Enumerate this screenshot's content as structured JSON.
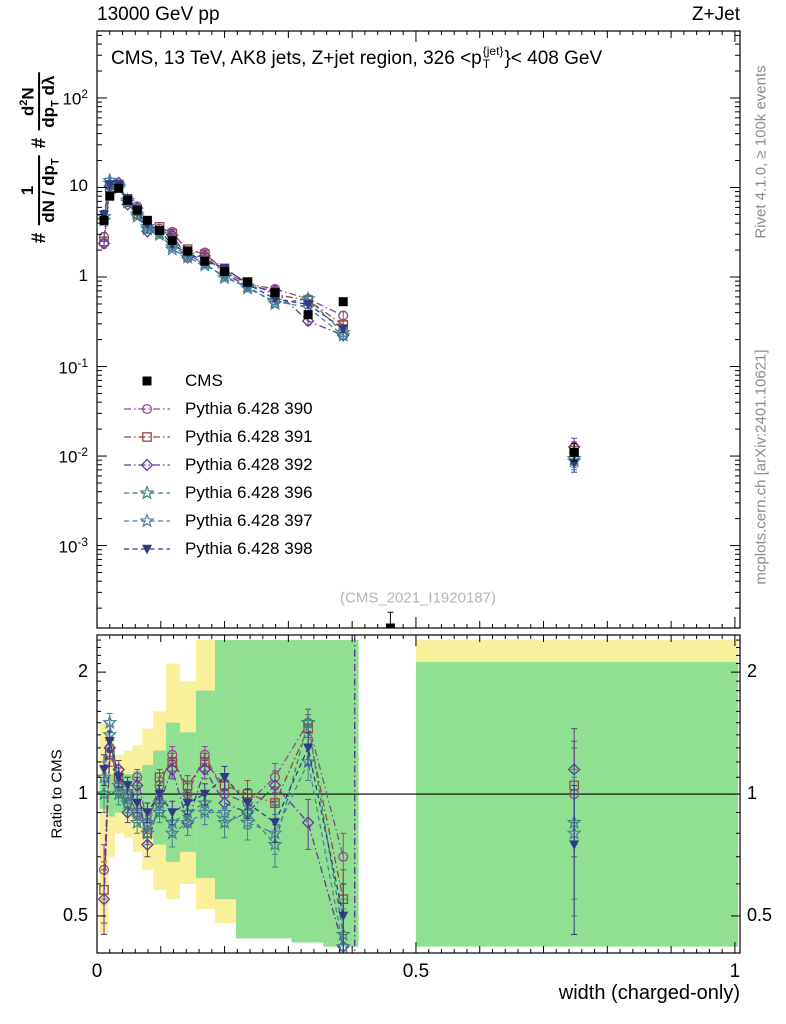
{
  "header": {
    "left": "13000 GeV pp",
    "right": "Z+Jet"
  },
  "title": {
    "pre": "CMS, 13 TeV, AK8 jets, Z+jet region, 326 <p",
    "sup": "{jet}",
    "sub": "T",
    "post": "}< 408 GeV"
  },
  "ylabel": {
    "hash1": "#",
    "f1num": "1",
    "f1den_pre": "dN / dp",
    "f1den_sub": "T",
    "hash2": "#",
    "f2num_pre": "d",
    "f2num_sup": "2",
    "f2num_post": "N",
    "f2den_pre": "dp",
    "f2den_sub": "T",
    "f2den_post": " dλ"
  },
  "ratio_ylabel": "Ratio to CMS",
  "xlabel": "width (charged-only)",
  "watermark": "(CMS_2021_I1920187)",
  "side_notes": {
    "top": "Rivet 4.1.0, ≥ 100k events",
    "bottom": "mcplots.cern.ch [arXiv:2401.10621]"
  },
  "axes": {
    "x_ticks": [
      {
        "v": 0,
        "label": "0"
      },
      {
        "v": 0.5,
        "label": "0.5"
      },
      {
        "v": 1,
        "label": "1"
      }
    ],
    "main_y_ticks": [
      {
        "v": 100,
        "label": "10^{2}"
      },
      {
        "v": 10,
        "label": "10"
      },
      {
        "v": 1,
        "label": "1"
      },
      {
        "v": 0.1,
        "label": "10^{-1}"
      },
      {
        "v": 0.01,
        "label": "10^{-2}"
      },
      {
        "v": 0.001,
        "label": "10^{-3}"
      }
    ],
    "ratio_y_ticks": [
      {
        "v": 2,
        "label": "2"
      },
      {
        "v": 1,
        "label": "1"
      },
      {
        "v": 0.5,
        "label": "0.5"
      }
    ]
  },
  "colors": {
    "band_yellow": "#f8f09b",
    "band_green": "#90e092",
    "watermark": "#b5b5b5",
    "side_note": "#8c8c8c"
  },
  "chart_data": {
    "type": "line",
    "title": "CMS, 13 TeV, AK8 jets, Z+jet region, 326 < pT{jet} < 408 GeV",
    "xlabel": "width (charged-only)",
    "ylabel": "# 1/(dN/dpT) # d2N/(dpT dλ)",
    "ratio_label": "Ratio to CMS",
    "xlim": [
      0,
      1.008
    ],
    "main_ylog": true,
    "main_ylim": [
      0.00012,
      560
    ],
    "ratio_ylog": true,
    "ratio_ylim": [
      0.405,
      2.47
    ],
    "legend_position": "middle-left",
    "grid": false,
    "x": [
      0.011,
      0.02,
      0.034,
      0.048,
      0.063,
      0.079,
      0.098,
      0.118,
      0.142,
      0.169,
      0.2,
      0.236,
      0.279,
      0.331,
      0.386,
      0.46,
      0.748
    ],
    "cms": {
      "name": "CMS",
      "marker": "square-filled",
      "color": "#000000",
      "values": [
        4.3,
        8.0,
        9.8,
        7.2,
        5.6,
        4.3,
        3.3,
        2.55,
        1.95,
        1.5,
        1.15,
        0.88,
        0.67,
        0.38,
        0.53,
        0.00012,
        0.011
      ],
      "rel_err": [
        0.12,
        0.06,
        0.05,
        0.04,
        0.04,
        0.04,
        0.05,
        0.05,
        0.05,
        0.06,
        0.06,
        0.07,
        0.08,
        0.1,
        0.1,
        0.5,
        0.25
      ]
    },
    "series": [
      {
        "name": "Pythia 6.428 390",
        "marker": "circle-open",
        "color": "#8d4a8d",
        "dash": "dashdot",
        "ratio": [
          0.65,
          1.3,
          1.05,
          0.95,
          1.1,
          0.85,
          1.05,
          1.25,
          1.0,
          1.25,
          1.0,
          0.95,
          1.1,
          1.5,
          0.7,
          null,
          1.0
        ]
      },
      {
        "name": "Pythia 6.428 391",
        "marker": "square-open",
        "color": "#9a4640",
        "dash": "dashdot",
        "ratio": [
          0.58,
          1.25,
          1.1,
          1.0,
          0.9,
          0.8,
          1.1,
          1.2,
          1.05,
          1.2,
          1.05,
          1.0,
          0.95,
          1.45,
          0.55,
          null,
          1.05
        ]
      },
      {
        "name": "Pythia 6.428 392",
        "marker": "diamond-open",
        "color": "#5f3a96",
        "dash": "dashdot",
        "ratio": [
          0.55,
          1.3,
          1.15,
          0.9,
          1.05,
          0.75,
          0.95,
          1.15,
          0.85,
          1.15,
          0.95,
          0.9,
          1.05,
          0.85,
          0.42,
          null,
          1.15
        ]
      },
      {
        "name": "Pythia 6.428 396",
        "marker": "star-open",
        "color": "#36857c",
        "dash": "dashed",
        "ratio": [
          1.0,
          1.4,
          1.0,
          0.95,
          0.85,
          0.8,
          0.9,
          0.85,
          0.9,
          0.95,
          0.85,
          0.9,
          0.75,
          1.5,
          0.45,
          null,
          0.85
        ]
      },
      {
        "name": "Pythia 6.428 397",
        "marker": "star-open",
        "color": "#4d7f9e",
        "dash": "dashed",
        "ratio": [
          1.1,
          1.5,
          1.05,
          1.0,
          0.9,
          0.85,
          0.95,
          0.8,
          0.85,
          0.9,
          0.9,
          0.85,
          0.8,
          1.2,
          0.42,
          null,
          0.8
        ]
      },
      {
        "name": "Pythia 6.428 398",
        "marker": "triangle-down-filled",
        "color": "#303a85",
        "dash": "dashed",
        "ratio": [
          1.15,
          1.35,
          1.1,
          1.05,
          0.95,
          0.9,
          1.0,
          0.9,
          0.95,
          1.0,
          1.1,
          0.95,
          0.85,
          1.3,
          0.5,
          null,
          0.75
        ]
      }
    ],
    "ratio_err": [
      0.1,
      0.08,
      0.06,
      0.05,
      0.05,
      0.05,
      0.05,
      0.06,
      0.06,
      0.06,
      0.07,
      0.08,
      0.09,
      0.12,
      0.1,
      0,
      0.3
    ],
    "ratio_reference_line": 1,
    "ratio_vline_x": 0.404,
    "bands": {
      "yellow": [
        [
          0.004,
          0.018,
          0.45,
          1.5
        ],
        [
          0.018,
          0.028,
          0.7,
          1.35
        ],
        [
          0.028,
          0.042,
          0.8,
          1.25
        ],
        [
          0.042,
          0.056,
          0.78,
          1.28
        ],
        [
          0.056,
          0.071,
          0.72,
          1.32
        ],
        [
          0.071,
          0.088,
          0.65,
          1.45
        ],
        [
          0.088,
          0.108,
          0.58,
          1.6
        ],
        [
          0.108,
          0.13,
          0.55,
          2.1
        ],
        [
          0.13,
          0.155,
          0.6,
          1.9
        ],
        [
          0.155,
          0.185,
          0.52,
          2.4
        ],
        [
          0.185,
          0.218,
          0.48,
          2.4
        ],
        [
          0.218,
          0.258,
          0.44,
          2.4
        ],
        [
          0.258,
          0.305,
          0.44,
          2.4
        ],
        [
          0.305,
          0.355,
          0.43,
          2.4
        ],
        [
          0.355,
          0.41,
          0.42,
          2.4
        ],
        [
          0.5,
          1.005,
          0.42,
          2.4
        ]
      ],
      "green": [
        [
          0.004,
          0.018,
          0.92,
          1.1
        ],
        [
          0.018,
          0.028,
          0.88,
          1.12
        ],
        [
          0.028,
          0.042,
          0.9,
          1.1
        ],
        [
          0.042,
          0.056,
          0.88,
          1.12
        ],
        [
          0.056,
          0.071,
          0.86,
          1.14
        ],
        [
          0.071,
          0.088,
          0.82,
          1.18
        ],
        [
          0.088,
          0.108,
          0.75,
          1.28
        ],
        [
          0.108,
          0.13,
          0.68,
          1.5
        ],
        [
          0.13,
          0.155,
          0.72,
          1.42
        ],
        [
          0.155,
          0.185,
          0.62,
          1.8
        ],
        [
          0.185,
          0.218,
          0.55,
          2.4
        ],
        [
          0.218,
          0.258,
          0.44,
          2.4
        ],
        [
          0.258,
          0.305,
          0.44,
          2.4
        ],
        [
          0.305,
          0.355,
          0.43,
          2.4
        ],
        [
          0.355,
          0.41,
          0.42,
          2.4
        ],
        [
          0.5,
          1.005,
          0.42,
          2.12
        ]
      ]
    }
  }
}
